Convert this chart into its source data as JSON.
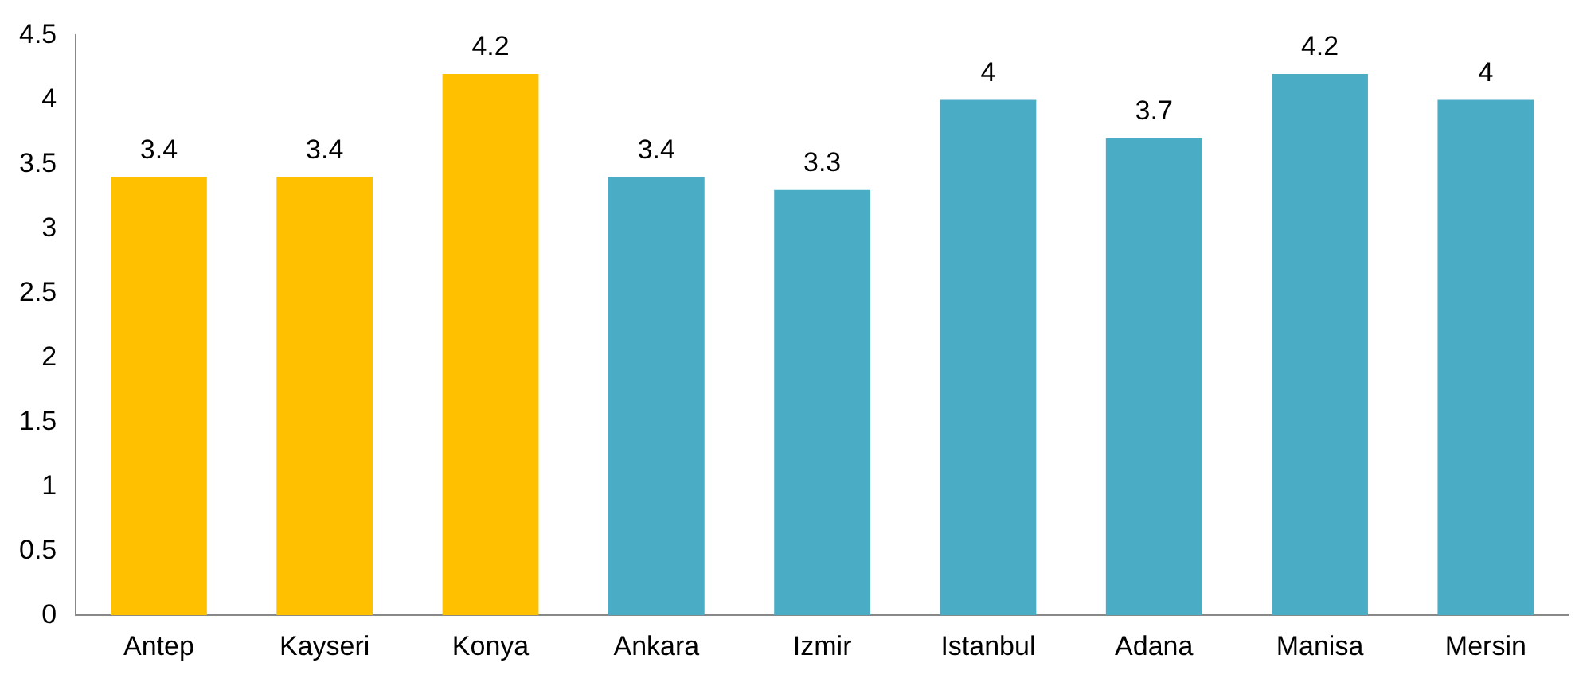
{
  "chart_data": {
    "type": "bar",
    "categories": [
      "Antep",
      "Kayseri",
      "Konya",
      "Ankara",
      "Izmir",
      "Istanbul",
      "Adana",
      "Manisa",
      "Mersin"
    ],
    "values": [
      3.4,
      3.4,
      4.2,
      3.4,
      3.3,
      4,
      3.7,
      4.2,
      4
    ],
    "colors": [
      "#ffc000",
      "#ffc000",
      "#ffc000",
      "#4bacc6",
      "#4bacc6",
      "#4bacc6",
      "#4bacc6",
      "#4bacc6",
      "#4bacc6"
    ],
    "ylim": [
      0,
      4.5
    ],
    "yticks": [
      0,
      0.5,
      1,
      1.5,
      2,
      2.5,
      3,
      3.5,
      4,
      4.5
    ],
    "grid": false,
    "legend": false,
    "data_labels": true
  }
}
